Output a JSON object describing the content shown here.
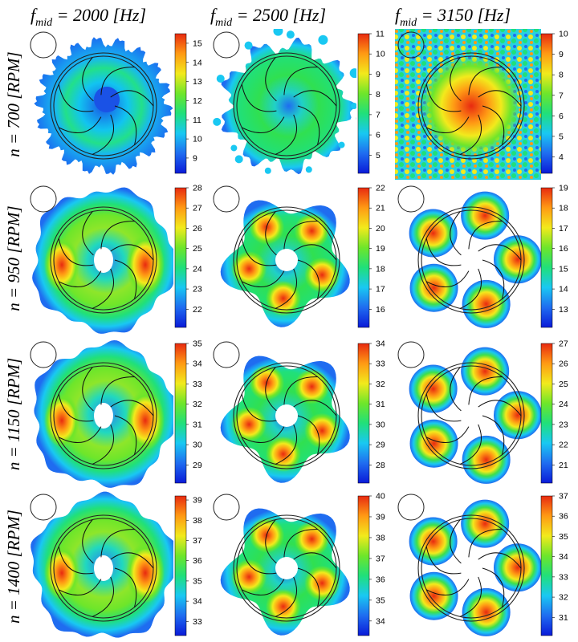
{
  "chart_data": {
    "type": "heatmap",
    "title": "",
    "columns": [
      {
        "prefix": "f",
        "subscript": "mid",
        "suffix": " = 2000 [Hz]"
      },
      {
        "prefix": "f",
        "subscript": "mid",
        "suffix": " = 2500 [Hz]"
      },
      {
        "prefix": "f",
        "subscript": "mid",
        "suffix": " = 3150 [Hz]"
      }
    ],
    "rows": [
      "n = 700 [RPM]",
      "n = 950 [RPM]",
      "n = 1150 [RPM]",
      "n = 1400 [RPM]"
    ],
    "panels": [
      [
        {
          "pattern": "splash",
          "colorbar": {
            "ticks": [
              "15",
              "14",
              "13",
              "12",
              "11",
              "10",
              "9"
            ],
            "max": 15.5,
            "min": 8.2
          }
        },
        {
          "pattern": "blobs",
          "colorbar": {
            "ticks": [
              "11",
              "10",
              "9",
              "8",
              "7",
              "6",
              "5"
            ],
            "max": 11,
            "min": 4.1
          }
        },
        {
          "pattern": "noisy",
          "colorbar": {
            "ticks": [
              "10",
              "9",
              "8",
              "7",
              "6",
              "5",
              "4"
            ],
            "max": 10,
            "min": 3.2
          }
        }
      ],
      [
        {
          "pattern": "ring",
          "colorbar": {
            "ticks": [
              "28",
              "27",
              "26",
              "25",
              "24",
              "23",
              "22"
            ],
            "max": 28,
            "min": 21.1
          }
        },
        {
          "pattern": "star",
          "colorbar": {
            "ticks": [
              "22",
              "21",
              "20",
              "19",
              "18",
              "17",
              "16"
            ],
            "max": 22,
            "min": 15.1
          }
        },
        {
          "pattern": "lobes",
          "colorbar": {
            "ticks": [
              "19",
              "18",
              "17",
              "16",
              "15",
              "14",
              "13"
            ],
            "max": 19,
            "min": 12.1
          }
        }
      ],
      [
        {
          "pattern": "ring",
          "colorbar": {
            "ticks": [
              "35",
              "34",
              "33",
              "32",
              "31",
              "30",
              "29"
            ],
            "max": 35,
            "min": 28.1
          }
        },
        {
          "pattern": "star",
          "colorbar": {
            "ticks": [
              "34",
              "33",
              "32",
              "31",
              "30",
              "29",
              "28"
            ],
            "max": 34,
            "min": 27.1
          }
        },
        {
          "pattern": "lobes",
          "colorbar": {
            "ticks": [
              "27",
              "26",
              "25",
              "24",
              "23",
              "22",
              "21"
            ],
            "max": 27,
            "min": 20.1
          }
        }
      ],
      [
        {
          "pattern": "ring",
          "colorbar": {
            "ticks": [
              "39",
              "38",
              "37",
              "36",
              "35",
              "34",
              "33"
            ],
            "max": 39.2,
            "min": 32.3
          }
        },
        {
          "pattern": "star",
          "colorbar": {
            "ticks": [
              "40",
              "39",
              "38",
              "37",
              "36",
              "35",
              "34"
            ],
            "max": 40,
            "min": 33.3
          }
        },
        {
          "pattern": "lobes",
          "colorbar": {
            "ticks": [
              "37",
              "36",
              "35",
              "34",
              "33",
              "32",
              "31"
            ],
            "max": 37,
            "min": 30.1
          }
        }
      ]
    ],
    "colormap": [
      "#0a1ad8",
      "#1f6cf0",
      "#19c8f2",
      "#20e07a",
      "#6ee62a",
      "#f2ea1c",
      "#ff9a14",
      "#e82a10"
    ]
  }
}
